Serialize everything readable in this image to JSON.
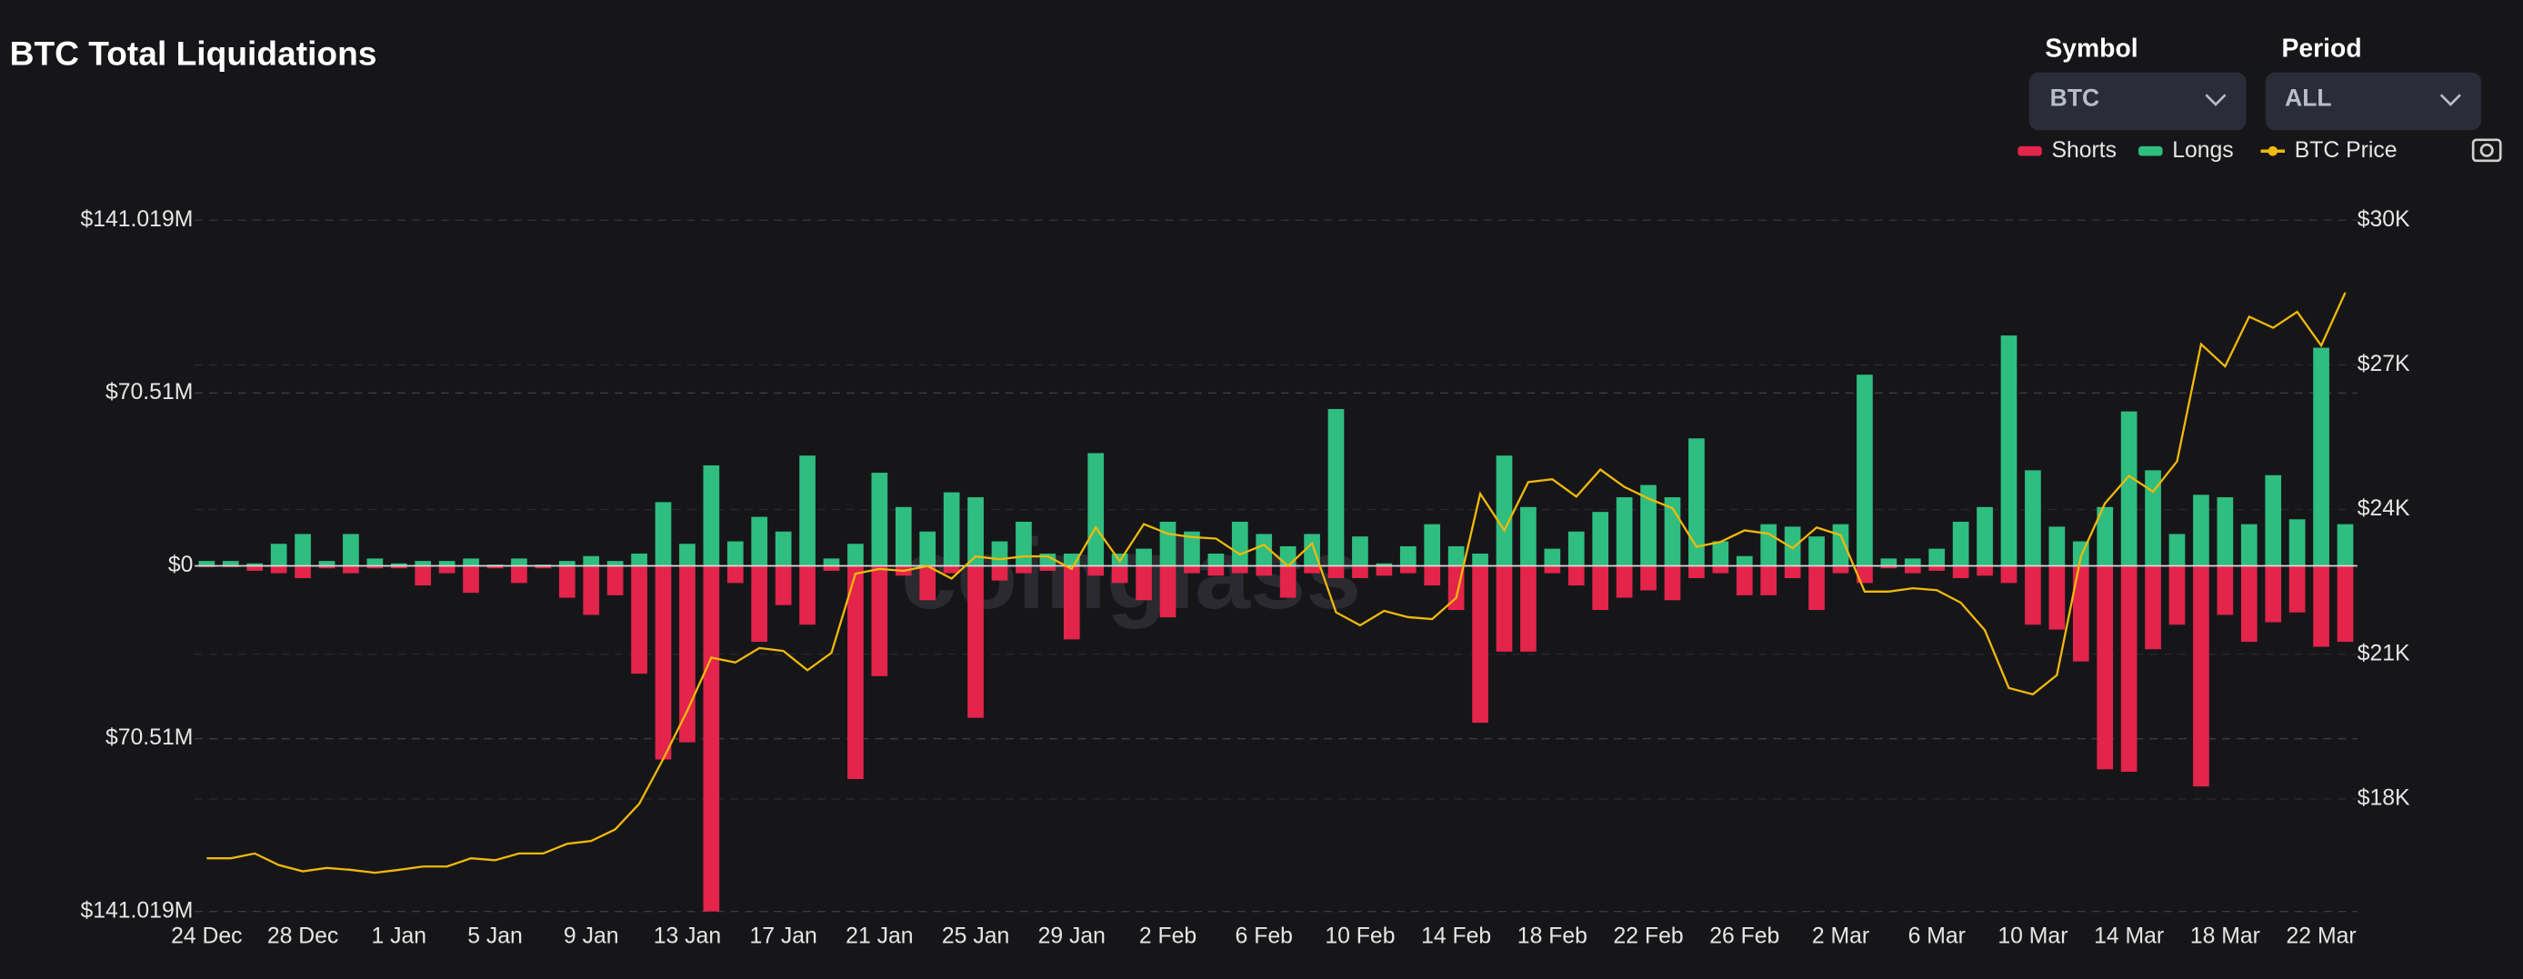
{
  "header": {
    "title": "BTC Total Liquidations",
    "watermark": "coinglass"
  },
  "controls": {
    "symbol_label": "Symbol",
    "symbol_value": "BTC",
    "period_label": "Period",
    "period_value": "ALL"
  },
  "chart_data": {
    "type": "bar",
    "categories": [
      "24 Dec",
      null,
      null,
      null,
      "28 Dec",
      null,
      null,
      null,
      "1 Jan",
      null,
      null,
      null,
      "5 Jan",
      null,
      null,
      null,
      "9 Jan",
      null,
      null,
      null,
      "13 Jan",
      null,
      null,
      null,
      "17 Jan",
      null,
      null,
      null,
      "21 Jan",
      null,
      null,
      null,
      "25 Jan",
      null,
      null,
      null,
      "29 Jan",
      null,
      null,
      null,
      "2 Feb",
      null,
      null,
      null,
      "6 Feb",
      null,
      null,
      null,
      "10 Feb",
      null,
      null,
      null,
      "14 Feb",
      null,
      null,
      null,
      "18 Feb",
      null,
      null,
      null,
      "22 Feb",
      null,
      null,
      null,
      "26 Feb",
      null,
      null,
      null,
      "2 Mar",
      null,
      null,
      null,
      "6 Mar",
      null,
      null,
      null,
      "10 Mar",
      null,
      null,
      null,
      "14 Mar",
      null,
      null,
      null,
      "18 Mar",
      null,
      null,
      null,
      "22 Mar",
      null
    ],
    "series": [
      {
        "name": "Shorts",
        "color": "#e3244b",
        "values": [
          -0.5,
          -0.5,
          -2,
          -3,
          -5,
          -1,
          -3,
          -1,
          -1,
          -8,
          -3,
          -11,
          -1,
          -7,
          -1,
          -13,
          -20,
          -12,
          -44,
          -79,
          -72,
          -141,
          -7,
          -31,
          -16,
          -24,
          -2,
          -87,
          -45,
          -4,
          -14,
          -3,
          -62,
          -6,
          -3,
          -2,
          -30,
          -4,
          -7,
          -14,
          -21,
          -3,
          -4,
          -3,
          -4,
          -13,
          -3,
          -5,
          -5,
          -4,
          -3,
          -8,
          -18,
          -64,
          -35,
          -35,
          -3,
          -8,
          -18,
          -13,
          -10,
          -14,
          -5,
          -3,
          -12,
          -12,
          -5,
          -18,
          -3,
          -7,
          -1,
          -3,
          -2,
          -5,
          -4,
          -7,
          -24,
          -26,
          -39,
          -83,
          -84,
          -34,
          -24,
          -90,
          -20,
          -31,
          -23,
          -19,
          -33,
          -31
        ]
      },
      {
        "name": "Longs",
        "color": "#2fbd80",
        "values": [
          2,
          2,
          1,
          9,
          13,
          2,
          13,
          3,
          1,
          2,
          2,
          3,
          0.5,
          3,
          0.5,
          2,
          4,
          2,
          5,
          26,
          9,
          41,
          10,
          20,
          14,
          45,
          3,
          9,
          38,
          24,
          14,
          30,
          28,
          10,
          18,
          5,
          5,
          46,
          5,
          7,
          18,
          14,
          5,
          18,
          13,
          8,
          13,
          64,
          12,
          1,
          8,
          17,
          8,
          5,
          45,
          24,
          7,
          14,
          22,
          28,
          33,
          28,
          52,
          10,
          4,
          17,
          16,
          12,
          17,
          78,
          3,
          3,
          7,
          18,
          24,
          94,
          39,
          16,
          10,
          24,
          63,
          39,
          13,
          29,
          28,
          17,
          37,
          19,
          89,
          17
        ]
      },
      {
        "name": "BTC Price",
        "color": "#f0b90b",
        "type": "line",
        "axis": "y2",
        "values": [
          16770,
          16770,
          16870,
          16630,
          16500,
          16570,
          16530,
          16470,
          16530,
          16600,
          16600,
          16770,
          16730,
          16870,
          16870,
          17070,
          17130,
          17370,
          17900,
          18830,
          19830,
          20930,
          20830,
          21130,
          21070,
          20670,
          21030,
          22670,
          22770,
          22730,
          22830,
          22570,
          23030,
          22970,
          23030,
          23030,
          22770,
          23630,
          22930,
          23700,
          23500,
          23430,
          23400,
          23070,
          23270,
          22830,
          23300,
          21870,
          21600,
          21900,
          21770,
          21730,
          22170,
          24330,
          23570,
          24570,
          24630,
          24270,
          24830,
          24470,
          24230,
          24030,
          23230,
          23330,
          23570,
          23500,
          23200,
          23630,
          23470,
          22300,
          22300,
          22370,
          22330,
          22070,
          21500,
          20300,
          20170,
          20570,
          23030,
          24130,
          24700,
          24370,
          25000,
          27430,
          26970,
          28000,
          27770,
          28100,
          27400,
          28500
        ]
      }
    ],
    "ylim": [
      -141.019,
      141.019
    ],
    "yticks": [
      {
        "value": -141.019,
        "label": "$141.019M"
      },
      {
        "value": -70.51,
        "label": "$70.51M"
      },
      {
        "value": 0,
        "label": "$0"
      },
      {
        "value": 70.51,
        "label": "$70.51M"
      },
      {
        "value": 141.019,
        "label": "$141.019M"
      }
    ],
    "y2lim": [
      15667,
      30000
    ],
    "y2ticks": [
      {
        "value": 18000,
        "label": "$18K"
      },
      {
        "value": 21000,
        "label": "$21K"
      },
      {
        "value": 24000,
        "label": "$24K"
      },
      {
        "value": 27000,
        "label": "$27K"
      },
      {
        "value": 30000,
        "label": "$30K"
      }
    ],
    "grid": true,
    "legend": "top-right"
  }
}
